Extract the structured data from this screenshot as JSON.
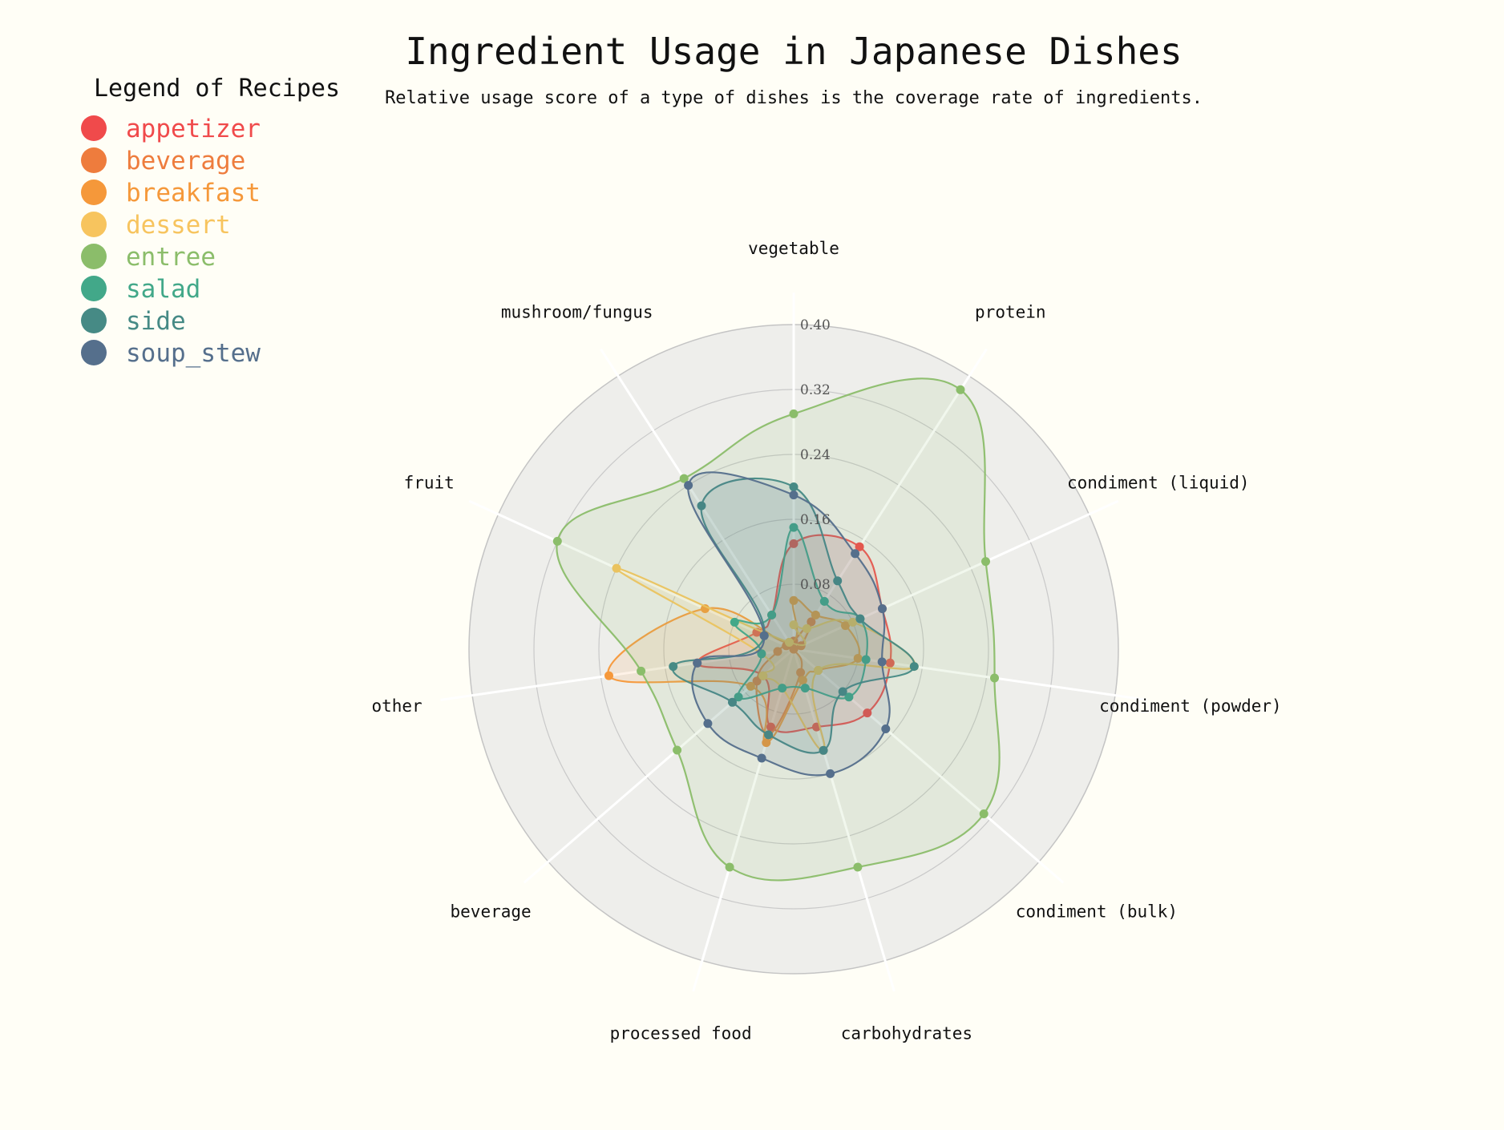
{
  "title": "Ingredient Usage in Japanese Dishes",
  "subtitle": "Relative usage score of a type of dishes is the coverage rate of ingredients.",
  "legend_title": "Legend of Recipes",
  "chart_data": {
    "type": "radar",
    "categories": [
      "vegetable",
      "protein",
      "condiment (liquid)",
      "condiment (powder)",
      "condiment (bulk)",
      "carbohydrates",
      "processed food",
      "beverage",
      "other",
      "fruit",
      "mushroom/fungus"
    ],
    "radial_ticks": [
      "0.08",
      "0.16",
      "0.24",
      "0.32",
      "0.40"
    ],
    "range": [
      0,
      0.4
    ],
    "legend_position": "top-left",
    "series": [
      {
        "name": "appetizer",
        "color": "#f04a4b",
        "values": [
          0.13,
          0.15,
          0.12,
          0.12,
          0.12,
          0.1,
          0.1,
          0.05,
          0.12,
          0.05,
          0.05
        ]
      },
      {
        "name": "beverage",
        "color": "#ee7c3d",
        "values": [
          0.01,
          0.04,
          0.01,
          0.0,
          0.0,
          0.03,
          0.11,
          0.06,
          0.02,
          0.01,
          0.01
        ]
      },
      {
        "name": "breakfast",
        "color": "#f5983a",
        "values": [
          0.06,
          0.05,
          0.07,
          0.08,
          0.04,
          0.04,
          0.12,
          0.07,
          0.23,
          0.12,
          0.01
        ]
      },
      {
        "name": "dessert",
        "color": "#f7c45e",
        "values": [
          0.03,
          0.03,
          0.08,
          0.15,
          0.04,
          0.13,
          0.05,
          0.05,
          0.04,
          0.24,
          0.01
        ]
      },
      {
        "name": "entree",
        "color": "#8bbd6a",
        "values": [
          0.29,
          0.38,
          0.26,
          0.25,
          0.31,
          0.28,
          0.28,
          0.19,
          0.19,
          0.32,
          0.25
        ]
      },
      {
        "name": "salad",
        "color": "#42a889",
        "values": [
          0.15,
          0.07,
          0.09,
          0.09,
          0.09,
          0.05,
          0.05,
          0.09,
          0.04,
          0.08,
          0.05
        ]
      },
      {
        "name": "side",
        "color": "#468a85",
        "values": [
          0.2,
          0.1,
          0.09,
          0.15,
          0.08,
          0.13,
          0.11,
          0.1,
          0.15,
          0.04,
          0.21
        ]
      },
      {
        "name": "soup_stew",
        "color": "#556f8c",
        "values": [
          0.19,
          0.14,
          0.12,
          0.11,
          0.15,
          0.16,
          0.14,
          0.14,
          0.12,
          0.04,
          0.24
        ]
      }
    ]
  }
}
